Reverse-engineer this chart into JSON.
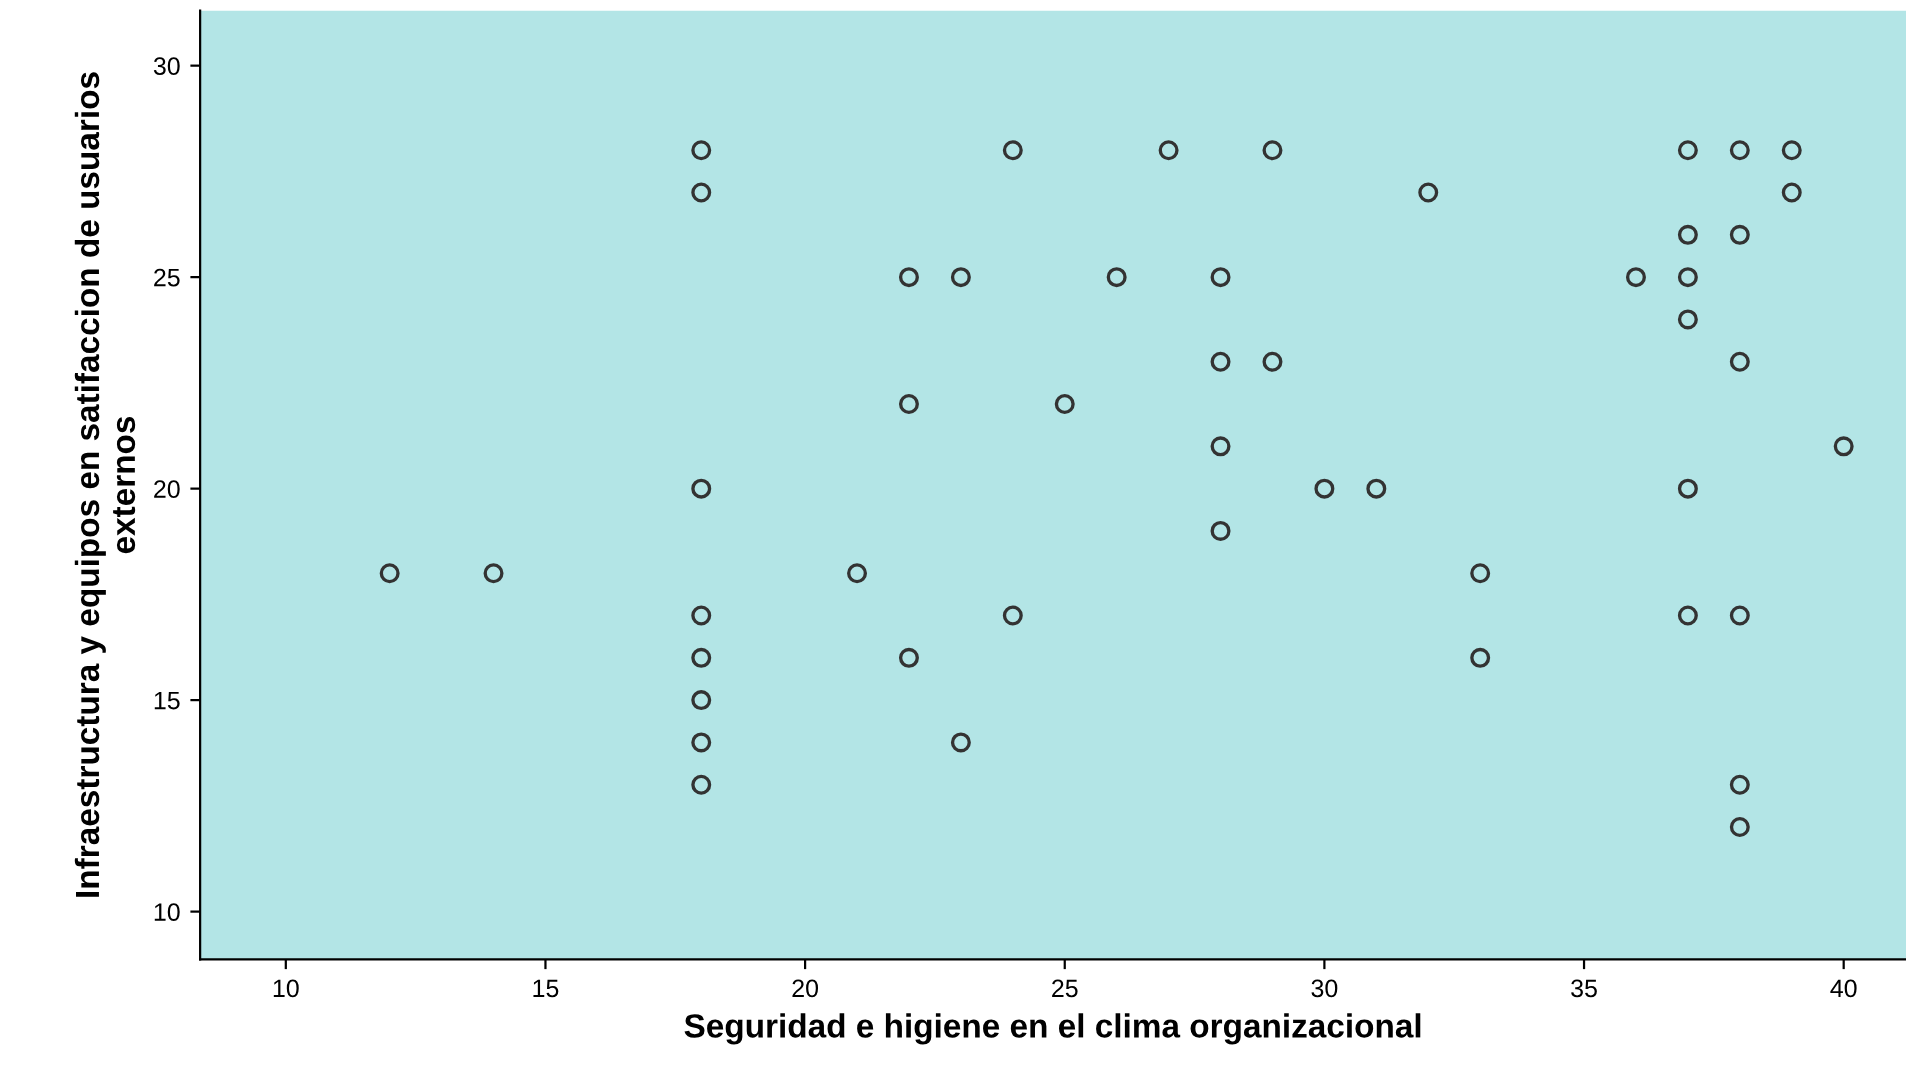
{
  "chart_data": {
    "type": "scatter",
    "xlabel": "Seguridad e higiene en el clima organizacional",
    "ylabel": "Infraestructura y equipos en satifaccion de usuarios externos",
    "series": [
      {
        "color": "#333333",
        "x": [
          12,
          14,
          18,
          18,
          18,
          18,
          18,
          18,
          18,
          18,
          21,
          22,
          22,
          22,
          23,
          23,
          24,
          24,
          25,
          26,
          27,
          28,
          28,
          28,
          28,
          29,
          29,
          30,
          31,
          32,
          33,
          33,
          36,
          37,
          37,
          37,
          37,
          37,
          37,
          38,
          38,
          38,
          38,
          38,
          38,
          39,
          39,
          40
        ],
        "values": [
          18,
          18,
          28,
          27,
          20,
          17,
          16,
          15,
          14,
          13,
          18,
          25,
          22,
          16,
          25,
          14,
          28,
          17,
          22,
          25,
          28,
          25,
          23,
          21,
          19,
          28,
          23,
          20,
          20,
          27,
          18,
          16,
          25,
          28,
          26,
          25,
          24,
          20,
          17,
          28,
          26,
          23,
          17,
          13,
          12,
          28,
          27,
          21
        ]
      }
    ],
    "xlim": [
      8.35,
      41.2
    ],
    "ylim": [
      8.87,
      31.3
    ],
    "xticks": [
      10,
      15,
      20,
      25,
      30,
      35,
      40
    ],
    "yticks": [
      10,
      15,
      20,
      25,
      30
    ],
    "marker": "circle",
    "grid": false,
    "legend": false
  }
}
